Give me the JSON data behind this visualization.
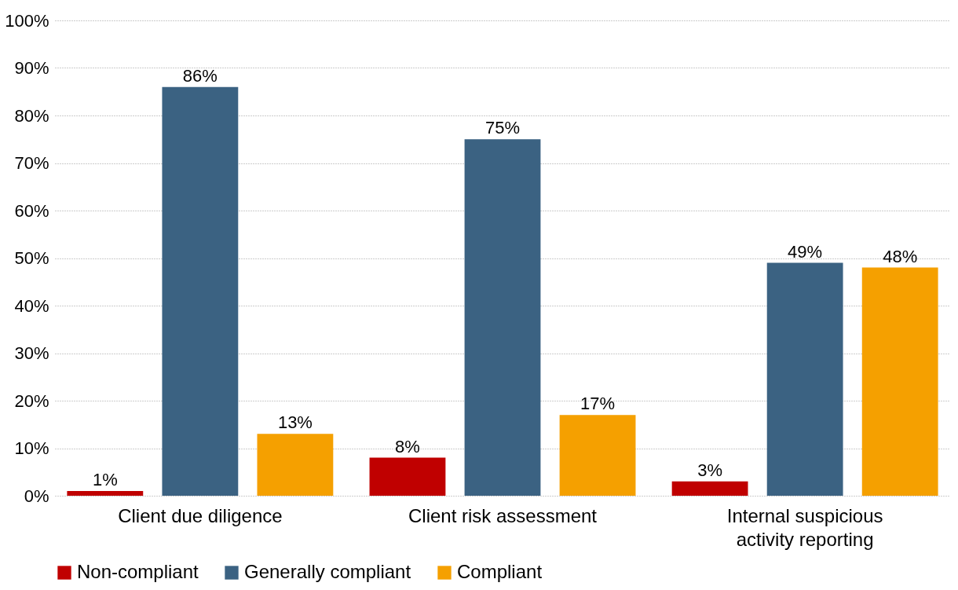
{
  "chart_data": {
    "type": "bar",
    "categories": [
      "Client due diligence",
      "Client risk assessment",
      "Internal suspicious activity reporting"
    ],
    "series": [
      {
        "name": "Non-compliant",
        "color": "#c00000",
        "values": [
          1,
          8,
          3
        ],
        "value_labels": [
          "1%",
          "8%",
          "3%"
        ]
      },
      {
        "name": "Generally compliant",
        "color": "#3b6282",
        "values": [
          86,
          75,
          49
        ],
        "value_labels": [
          "86%",
          "75%",
          "49%"
        ]
      },
      {
        "name": "Compliant",
        "color": "#f5a000",
        "values": [
          13,
          17,
          48
        ],
        "value_labels": [
          "13%",
          "17%",
          "48%"
        ]
      }
    ],
    "ylim": [
      0,
      100
    ],
    "yticks": [
      {
        "value": 0,
        "label": "0%"
      },
      {
        "value": 10,
        "label": "10%"
      },
      {
        "value": 20,
        "label": "20%"
      },
      {
        "value": 30,
        "label": "30%"
      },
      {
        "value": 40,
        "label": "40%"
      },
      {
        "value": 50,
        "label": "50%"
      },
      {
        "value": 60,
        "label": "60%"
      },
      {
        "value": 70,
        "label": "70%"
      },
      {
        "value": 80,
        "label": "80%"
      },
      {
        "value": 90,
        "label": "90%"
      },
      {
        "value": 100,
        "label": "100%"
      }
    ],
    "grid": "y",
    "legend": "bottom"
  }
}
